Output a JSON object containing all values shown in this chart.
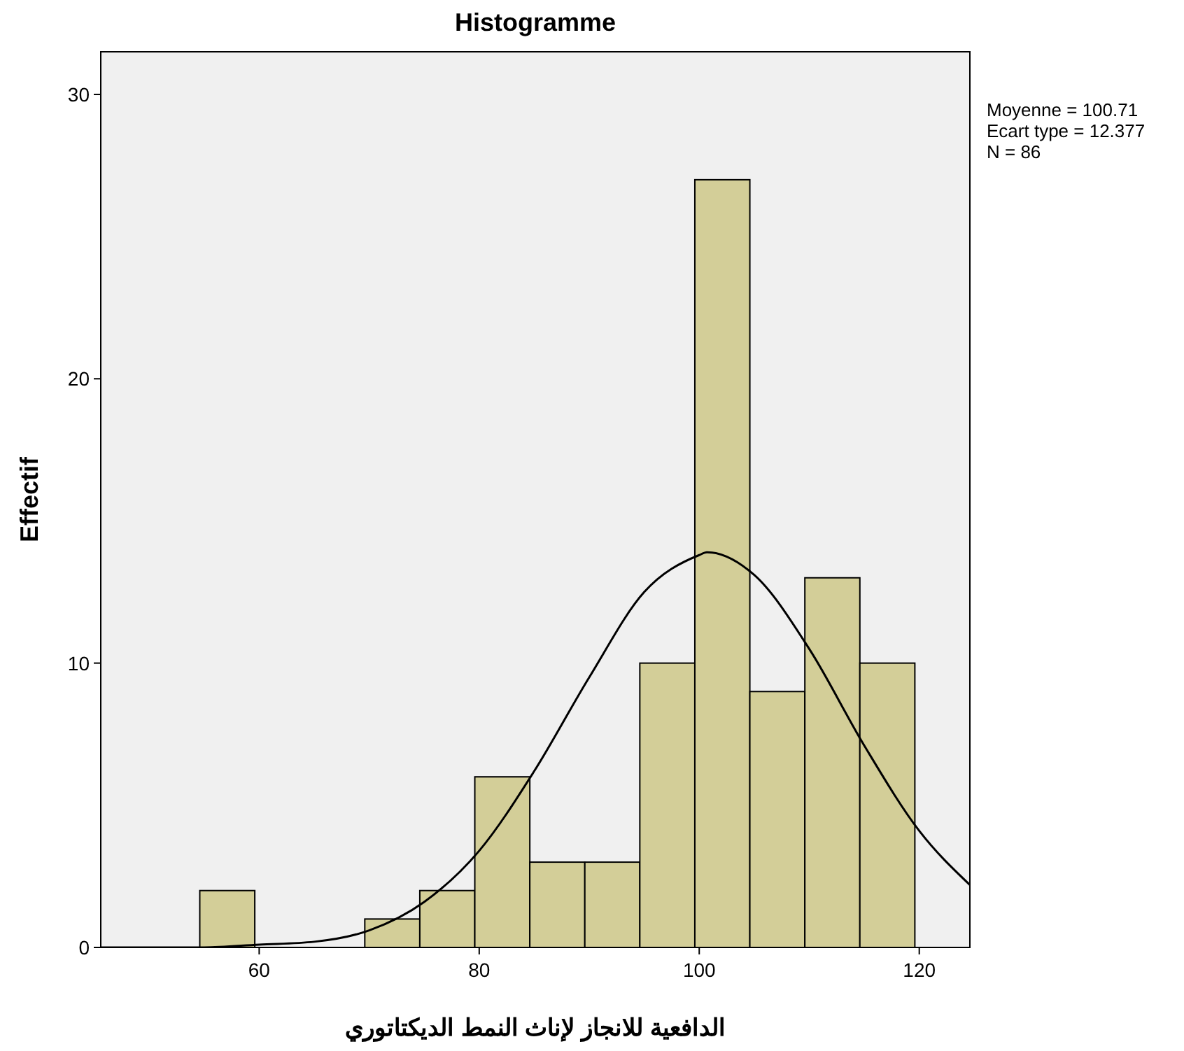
{
  "chart_data": {
    "type": "histogram",
    "title": "Histogramme",
    "xlabel": "الدافعية للانجاز لإناث النمط الديكتاتوري",
    "ylabel": "Effectif",
    "annotations": [
      "Moyenne = 100.71",
      "Ecart type = 12.377",
      "N = 86"
    ],
    "bins": [
      54.6,
      59.6,
      64.6,
      69.6,
      74.6,
      79.6,
      84.6,
      89.6,
      94.6,
      99.6,
      104.6,
      109.6,
      114.6,
      119.6
    ],
    "values": [
      2,
      0,
      0,
      1,
      2,
      6,
      3,
      3,
      10,
      27,
      9,
      13,
      10
    ],
    "color": "#d3ce98",
    "series": [
      {
        "type": "line",
        "color": "#000000",
        "x": [
          45.6,
          50,
          55,
          60,
          65,
          70,
          75,
          80,
          85,
          90,
          95,
          100,
          100.7,
          105,
          110,
          115,
          120,
          124.6
        ],
        "values": [
          0,
          0,
          0,
          0.1,
          0.2,
          0.6,
          1.6,
          3.4,
          6.2,
          9.5,
          12.5,
          13.8,
          13.9,
          13.1,
          10.5,
          7.1,
          4.1,
          2.2
        ]
      }
    ],
    "xlim": [
      45.6,
      124.6
    ],
    "ylim": [
      0,
      31.5
    ],
    "xticks": [
      60,
      80,
      100,
      120
    ],
    "yticks": [
      0,
      10,
      20,
      30
    ],
    "grid": false,
    "marker": "none"
  }
}
